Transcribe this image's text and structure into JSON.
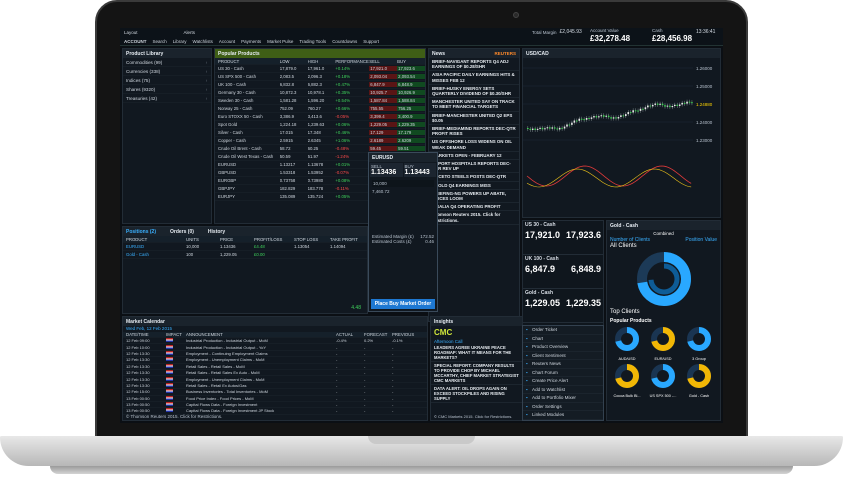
{
  "menu": {
    "top": [
      "Layout",
      "Alerts"
    ],
    "bottom": [
      "Search",
      "Library",
      "Watchlists",
      "Account",
      "Payments",
      "Market Pulse",
      "Trading Tools",
      "Countdowns",
      "Support"
    ],
    "account_label": "ACCOUNT",
    "total_margin_label": "Total Margin",
    "total_margin_value": "£2,045.93",
    "account_value_label": "Account Value",
    "account_value": "£32,278.48",
    "cash_label": "Cash",
    "cash_value": "£28,456.98",
    "time": "13:36:41",
    "logout_label": "LOGOUT"
  },
  "product_library": {
    "title": "Product Library",
    "items": [
      {
        "name": "Commodities",
        "count": "(99)"
      },
      {
        "name": "Currencies",
        "count": "(338)"
      },
      {
        "name": "Indices",
        "count": "(75)"
      },
      {
        "name": "Shares",
        "count": "(9320)"
      },
      {
        "name": "Treasuries",
        "count": "(42)"
      }
    ]
  },
  "popular": {
    "title": "Popular Products",
    "headers": [
      "PRODUCT",
      "LOW",
      "HIGH",
      "PERFORMANCE",
      "SELL",
      "BUY"
    ],
    "rows": [
      {
        "name": "US 30 - Cash",
        "low": "17,879.0",
        "high": "17,961.0",
        "perf": "+0.14%",
        "sell": "17,921.0",
        "buy": "17,923.6"
      },
      {
        "name": "US SPX 500 - Cash",
        "low": "2,083.5",
        "high": "2,096.3",
        "perf": "+0.18%",
        "sell": "2,093.04",
        "buy": "2,093.54"
      },
      {
        "name": "UK 100 - Cash",
        "low": "6,832.8",
        "high": "6,882.3",
        "perf": "+0.47%",
        "sell": "6,847.9",
        "buy": "6,848.9"
      },
      {
        "name": "Germany 30 - Cash",
        "low": "10,872.3",
        "high": "10,978.1",
        "perf": "+0.35%",
        "sell": "10,925.7",
        "buy": "10,926.9"
      },
      {
        "name": "Sweden 30 - Cash",
        "low": "1,581.28",
        "high": "1,596.20",
        "perf": "+0.54%",
        "sell": "1,587.84",
        "buy": "1,588.84"
      },
      {
        "name": "Norway 25 - Cash",
        "low": "752.09",
        "high": "760.27",
        "perf": "+0.66%",
        "sell": "755.55",
        "buy": "756.25"
      },
      {
        "name": "Euro STOXX 50 - Cash",
        "low": "3,386.9",
        "high": "3,413.6",
        "perf": "-0.05%",
        "sell": "3,399.4",
        "buy": "3,400.9"
      },
      {
        "name": "Spot Gold",
        "low": "1,224.18",
        "high": "1,239.63",
        "perf": "+0.06%",
        "sell": "1,229.05",
        "buy": "1,229.35"
      },
      {
        "name": "Silver - Cash",
        "low": "17.015",
        "high": "17.348",
        "perf": "+0.46%",
        "sell": "17.129",
        "buy": "17.179"
      },
      {
        "name": "Copper - Cash",
        "low": "2.5915",
        "high": "2.6345",
        "perf": "+1.06%",
        "sell": "2.6189",
        "buy": "2.6209"
      },
      {
        "name": "Crude Oil Brent - Cash",
        "low": "58.72",
        "high": "60.25",
        "perf": "-0.48%",
        "sell": "59.45",
        "buy": "59.51"
      },
      {
        "name": "Crude Oil West Texas - Cash",
        "low": "50.59",
        "high": "51.97",
        "perf": "-1.24%",
        "sell": "51.28",
        "buy": "51.33"
      },
      {
        "name": "EURUSD",
        "low": "1.13217",
        "high": "1.13678",
        "perf": "+0.01%",
        "sell": "1.13436",
        "buy": "1.13443"
      },
      {
        "name": "GBPUSD",
        "low": "1.53318",
        "high": "1.53952",
        "perf": "-0.07%",
        "sell": "1.53691",
        "buy": "1.53707"
      },
      {
        "name": "EURGBP",
        "low": "0.73758",
        "high": "0.73980",
        "perf": "+0.08%",
        "sell": "0.73798",
        "buy": "0.73809"
      },
      {
        "name": "GBPJPY",
        "low": "182.829",
        "high": "183.778",
        "perf": "-0.11%",
        "sell": "183.227",
        "buy": "183.261"
      },
      {
        "name": "EURJPY",
        "low": "135.089",
        "high": "135.724",
        "perf": "+0.05%",
        "sell": "135.232",
        "buy": "135.254"
      }
    ]
  },
  "news": {
    "title": "News",
    "source": "REUTERS",
    "items": [
      "BRIEF-NAVIGANT REPORTS Q4 ADJ EARNINGS OF $0.28/SHR",
      "ASIA PACIFIC DAILY EARNINGS HITS & MISSES FEB 12",
      "BRIEF-HUSKY ENERGY SETS QUARTERLY DIVIDEND OF $0.30/SHR",
      "MANCHESTER UNITED SAY ON TRACK TO MEET FINANCIAL TARGETS",
      "BRIEF-MANCHESTER UNITED Q2 EPS $0.05",
      "BRIEF-MEDIAMIND REPORTS DEC-QTR PROFIT RISES",
      "US OFFSHORE LOSS WIDENS ON OIL WEAK DEMAND",
      "MARKETS OPEN - FEBRUARY 12",
      "REPORT HOSPITALS REPORTS DEC-QTR REV UP",
      "DUCETO STEELS POSTS DEC-QTR",
      "EBOLD Q4 EARNINGS MISS",
      "BRIEFING-NG POWERS UP ABATE, PRICES LOOM",
      "VISALIA Q4 OPERATING PROFIT",
      "Thomson Reuters 2015. Click for Restrictions."
    ]
  },
  "eurusd_ticket": {
    "title": "EURUSD",
    "sell_label": "SELL",
    "buy_label": "BUY",
    "sell": "1.13436",
    "buy": "1.13443",
    "spread": "0.7",
    "quantity": "10,000",
    "amount": "7,460.72",
    "order_label": "Place Buy Market Order",
    "estimated_margin_label": "Estimated Margin (£)",
    "estimated_margin": "172.52",
    "estimated_costs_label": "Estimated Costs (£)",
    "estimated_costs": "0.46"
  },
  "chart": {
    "title": "USD/CAD",
    "levels": [
      "1.26000",
      "1.25000",
      "1.24880",
      "1.24000",
      "1.23000"
    ]
  },
  "positions": {
    "tabs": [
      "Positions (2)",
      "Orders (0)",
      "History"
    ],
    "headers": [
      "PRODUCT",
      "UNITS",
      "PRICE",
      "PROFIT/LOSS",
      "STOP LOSS",
      "TAKE PROFIT"
    ],
    "rows": [
      {
        "product": "EURUSD",
        "units": "10,000",
        "price": "1.13436",
        "pl": "£4.48",
        "stop": "1.13054",
        "take": "1.14094"
      },
      {
        "product": "Gold - Cash",
        "units": "100",
        "price": "1,229.05",
        "pl": "£0.00",
        "stop": "",
        "take": ""
      }
    ],
    "total": "4.48"
  },
  "calendar": {
    "title": "Market Calendar",
    "date_range": "Wed Feb, 12 Feb 2015",
    "headers": [
      "DATE/TIME",
      "IMPACT",
      "ANNOUNCEMENT",
      "ACTUAL",
      "FORECAST",
      "PREVIOUS"
    ],
    "rows": [
      {
        "date": "12 Feb",
        "time": "09:00",
        "text": "Industrial Production - Industrial Output - MoM",
        "actual": "-0.4%",
        "forecast": "0.2%",
        "previous": "-0.1%"
      },
      {
        "date": "12 Feb",
        "time": "10:00",
        "text": "Industrial Production - Industrial Output - YoY",
        "actual": "-",
        "forecast": "-",
        "previous": "-"
      },
      {
        "date": "12 Feb",
        "time": "13:30",
        "text": "Employment - Continuing Employment Claims",
        "actual": "-",
        "forecast": "-",
        "previous": "-"
      },
      {
        "date": "12 Feb",
        "time": "13:30",
        "text": "Employment - Unemployment Claims - MoM",
        "actual": "-",
        "forecast": "-",
        "previous": "-"
      },
      {
        "date": "12 Feb",
        "time": "13:30",
        "text": "Retail Sales - Retail Sales - MoM",
        "actual": "-",
        "forecast": "-",
        "previous": "-"
      },
      {
        "date": "12 Feb",
        "time": "13:30",
        "text": "Retail Sales - Retail Sales Ex Auto - MoM",
        "actual": "-",
        "forecast": "-",
        "previous": "-"
      },
      {
        "date": "12 Feb",
        "time": "13:30",
        "text": "Employment - Unemployment Claims - MoM",
        "actual": "-",
        "forecast": "-",
        "previous": "-"
      },
      {
        "date": "12 Feb",
        "time": "13:30",
        "text": "Retail Sales - Retail Ex Autos/Gas",
        "actual": "-",
        "forecast": "-",
        "previous": "-"
      },
      {
        "date": "12 Feb",
        "time": "15:00",
        "text": "Business Inventories - Total Inventories - MoM",
        "actual": "-",
        "forecast": "-",
        "previous": "-"
      },
      {
        "date": "13 Feb",
        "time": "00:50",
        "text": "Food Price Index - Food Prices - MoM",
        "actual": "-",
        "forecast": "-",
        "previous": "-"
      },
      {
        "date": "13 Feb",
        "time": "00:50",
        "text": "Capital Flows Data - Foreign Investment",
        "actual": "-",
        "forecast": "-",
        "previous": "-"
      },
      {
        "date": "13 Feb",
        "time": "00:50",
        "text": "Capital Flows Data - Foreign Investment JP Stock",
        "actual": "-",
        "forecast": "-",
        "previous": "-"
      }
    ],
    "footer": "© Thomson Reuters 2015. Click for Restrictions."
  },
  "insights": {
    "title": "Insights",
    "brand": "CMC",
    "sub": "Afternoon Call",
    "items": [
      "LEADERS AGREE UKRAINE PEACE ROADMAP: WHAT IT MEANS FOR THE MARKETS?",
      "SPECIAL REPORT: COMPANY RESULTS TO PROVIDE CHOP BY MICHAEL MCCARTHY, CHIEF MARKET STRATEGIST CMC MARKETS",
      "DATA ALERT: OIL DROPS AGAIN ON EXCEED STOCKPILES AND RISING SUPPLY"
    ],
    "footer": "© CMC Markets 2015. Click for Restrictions."
  },
  "quotes": [
    {
      "name": "US 30 - Cash",
      "sell": "17,921.0",
      "buy": "17,923.6"
    },
    {
      "name": "UK 100 - Cash",
      "sell": "6,847.9",
      "buy": "6,848.9"
    },
    {
      "name": "Gold - Cash",
      "sell": "1,229.05",
      "buy": "1,229.35"
    }
  ],
  "context_menu": [
    "Order Ticket",
    "Chart",
    "Product Overview",
    "Client Sentiment",
    "Reuters News",
    "Chart Forum",
    "Create Price Alert",
    "Add to Watchlist",
    "Add to Portfolio Mixer",
    "Order Settings",
    "Linked Modules"
  ],
  "sentiment": {
    "title": "Gold - Cash",
    "tab": "Combined",
    "clients_label": "Number of Clients",
    "all_clients": "All Clients",
    "position_value_label": "Position Value",
    "top_clients": "Top Clients",
    "popular_label": "Popular Products",
    "products": [
      "AUD/USD",
      "EUR/USD",
      "3 Group",
      "Cocoa Bulk Bl...",
      "US SPX 500 -...",
      "Gold - Cash"
    ]
  }
}
